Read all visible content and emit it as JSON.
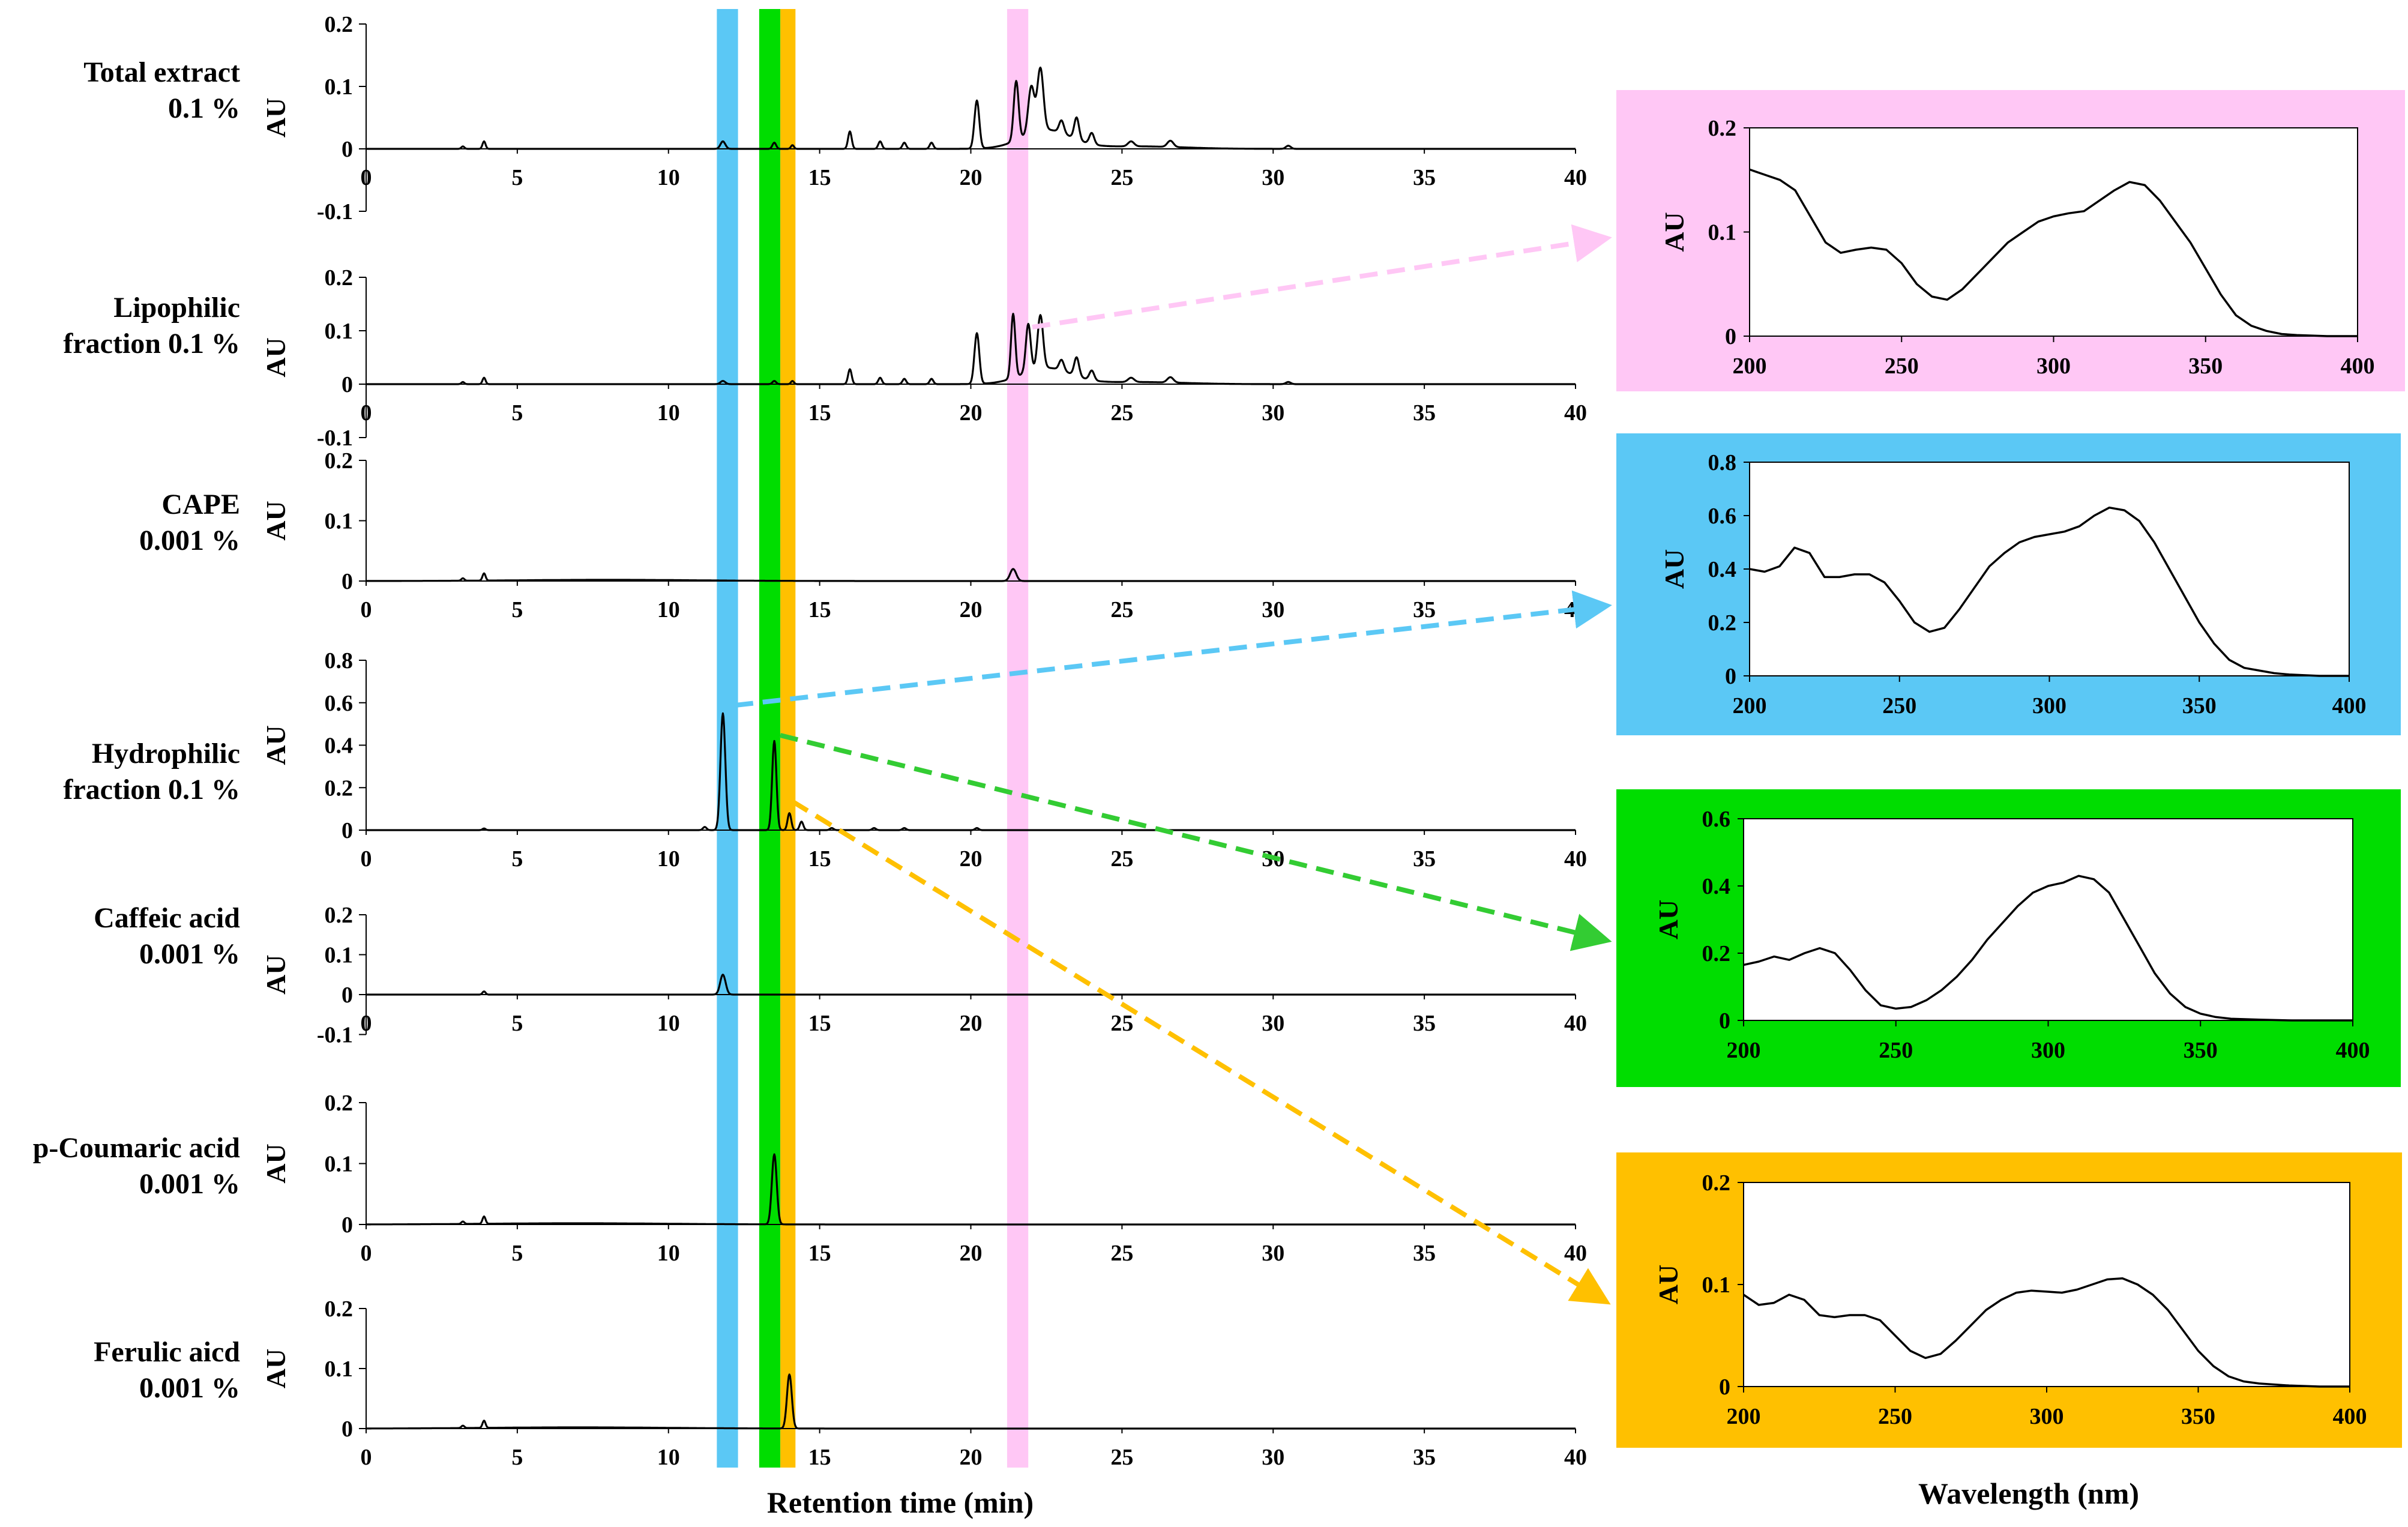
{
  "chart_data": {
    "chromatograms": {
      "type": "line",
      "xlabel": "Retention time (min)",
      "xlim": [
        0,
        40
      ],
      "xticks": [
        "0",
        "5",
        "10",
        "15",
        "20",
        "25",
        "30",
        "35",
        "40"
      ],
      "ylabel": "AU",
      "highlight_bands": [
        {
          "color": "#5bc8f5",
          "x_min": 11.6,
          "x_max": 12.3
        },
        {
          "color": "#00dd00",
          "x_min": 13.0,
          "x_max": 13.7
        },
        {
          "color": "#ffc000",
          "x_min": 13.7,
          "x_max": 14.2
        },
        {
          "color": "#ffc7f5",
          "x_min": 21.2,
          "x_max": 21.9
        }
      ],
      "panels": [
        {
          "name_line1": "Total extract",
          "name_line2": "0.1 %",
          "ylim": [
            -0.1,
            0.2
          ],
          "yticks": [
            "0.2",
            "0.1",
            "0",
            "-0.1"
          ],
          "peaks": [
            [
              3.2,
              0.004,
              0.05
            ],
            [
              3.9,
              0.012,
              0.05
            ],
            [
              11.8,
              0.012,
              0.08
            ],
            [
              13.5,
              0.01,
              0.06
            ],
            [
              14.1,
              0.006,
              0.05
            ],
            [
              16.0,
              0.028,
              0.06
            ],
            [
              17.0,
              0.012,
              0.06
            ],
            [
              17.8,
              0.01,
              0.06
            ],
            [
              18.7,
              0.01,
              0.06
            ],
            [
              20.2,
              0.077,
              0.08
            ],
            [
              21.5,
              0.095,
              0.08
            ],
            [
              22.0,
              0.075,
              0.1
            ],
            [
              22.3,
              0.1,
              0.1
            ],
            [
              23.0,
              0.02,
              0.08
            ],
            [
              23.5,
              0.035,
              0.08
            ],
            [
              24.0,
              0.018,
              0.08
            ],
            [
              25.3,
              0.008,
              0.1
            ],
            [
              26.6,
              0.01,
              0.1
            ],
            [
              30.5,
              0.005,
              0.08
            ]
          ],
          "bumps": [
            [
              22.5,
              0.03,
              0.8
            ],
            [
              25.5,
              0.004,
              1.5
            ]
          ]
        },
        {
          "name_line1": "Lipophilic",
          "name_line2": "fraction  0.1 %",
          "ylim": [
            -0.1,
            0.2
          ],
          "yticks": [
            "0.2",
            "0.1",
            "0",
            "-0.1"
          ],
          "peaks": [
            [
              3.2,
              0.004,
              0.05
            ],
            [
              3.9,
              0.012,
              0.05
            ],
            [
              11.8,
              0.006,
              0.08
            ],
            [
              13.5,
              0.006,
              0.06
            ],
            [
              14.1,
              0.006,
              0.05
            ],
            [
              16.0,
              0.028,
              0.06
            ],
            [
              17.0,
              0.012,
              0.06
            ],
            [
              17.8,
              0.01,
              0.06
            ],
            [
              18.7,
              0.01,
              0.06
            ],
            [
              20.2,
              0.095,
              0.08
            ],
            [
              21.4,
              0.12,
              0.07
            ],
            [
              21.9,
              0.09,
              0.08
            ],
            [
              22.3,
              0.1,
              0.09
            ],
            [
              23.0,
              0.02,
              0.08
            ],
            [
              23.5,
              0.035,
              0.08
            ],
            [
              24.0,
              0.018,
              0.08
            ],
            [
              25.3,
              0.008,
              0.1
            ],
            [
              26.6,
              0.01,
              0.1
            ],
            [
              30.5,
              0.004,
              0.08
            ]
          ],
          "bumps": [
            [
              22.5,
              0.03,
              0.8
            ],
            [
              25.5,
              0.004,
              1.5
            ]
          ]
        },
        {
          "name_line1": "CAPE",
          "name_line2": "0.001 %",
          "ylim": [
            0,
            0.2
          ],
          "yticks": [
            "0.2",
            "0.1",
            "0"
          ],
          "peaks": [
            [
              3.2,
              0.004,
              0.05
            ],
            [
              3.9,
              0.012,
              0.05
            ],
            [
              21.4,
              0.02,
              0.1
            ]
          ],
          "bumps": [
            [
              8,
              0.002,
              3
            ]
          ]
        },
        {
          "name_line1": "Hydrophilic",
          "name_line2": "fraction 0.1 %",
          "ylim": [
            0,
            0.8
          ],
          "yticks": [
            "0.8",
            "0.6",
            "0.4",
            "0.2",
            "0"
          ],
          "peaks": [
            [
              3.9,
              0.008,
              0.05
            ],
            [
              11.2,
              0.015,
              0.06
            ],
            [
              11.8,
              0.55,
              0.08
            ],
            [
              13.5,
              0.42,
              0.07
            ],
            [
              14.0,
              0.08,
              0.06
            ],
            [
              14.4,
              0.04,
              0.06
            ],
            [
              15.4,
              0.01,
              0.06
            ],
            [
              16.8,
              0.01,
              0.06
            ],
            [
              17.8,
              0.01,
              0.06
            ],
            [
              20.2,
              0.01,
              0.06
            ]
          ],
          "bumps": []
        },
        {
          "name_line1": "Caffeic acid",
          "name_line2": "0.001 %",
          "ylim": [
            -0.1,
            0.2
          ],
          "yticks": [
            "0.2",
            "0.1",
            "0",
            "-0.1"
          ],
          "peaks": [
            [
              3.9,
              0.008,
              0.05
            ],
            [
              11.8,
              0.05,
              0.09
            ]
          ],
          "bumps": []
        },
        {
          "name_line1": "p-Coumaric acid",
          "name_line2": "0.001 %",
          "ylim": [
            0,
            0.2
          ],
          "yticks": [
            "0.2",
            "0.1",
            "0"
          ],
          "peaks": [
            [
              3.2,
              0.004,
              0.05
            ],
            [
              3.9,
              0.012,
              0.05
            ],
            [
              13.5,
              0.115,
              0.08
            ]
          ],
          "bumps": [
            [
              7,
              0.002,
              3
            ]
          ]
        },
        {
          "name_line1": "Ferulic aicd",
          "name_line2": "0.001 %",
          "ylim": [
            0,
            0.2
          ],
          "yticks": [
            "0.2",
            "0.1",
            "0"
          ],
          "peaks": [
            [
              3.2,
              0.004,
              0.05
            ],
            [
              3.9,
              0.012,
              0.05
            ],
            [
              14.0,
              0.09,
              0.08
            ]
          ],
          "bumps": [
            [
              7,
              0.002,
              3
            ]
          ]
        }
      ]
    },
    "uv_spectra": {
      "type": "line",
      "xlabel": "Wavelength (nm)",
      "xlim": [
        200,
        400
      ],
      "xticks": [
        "200",
        "250",
        "300",
        "350",
        "400"
      ],
      "ylabel": "AU",
      "panels": [
        {
          "bg": "#ffc7f5",
          "arrow_color": "#ffc7f5",
          "ylim": [
            0,
            0.2
          ],
          "yticks": [
            "0.2",
            "0.1",
            "0"
          ],
          "x": [
            200,
            205,
            210,
            215,
            220,
            225,
            230,
            235,
            240,
            245,
            250,
            255,
            260,
            265,
            270,
            275,
            280,
            285,
            290,
            295,
            300,
            305,
            310,
            315,
            320,
            325,
            330,
            335,
            340,
            345,
            350,
            355,
            360,
            365,
            370,
            375,
            380,
            390,
            400
          ],
          "y": [
            0.16,
            0.155,
            0.15,
            0.14,
            0.115,
            0.09,
            0.08,
            0.083,
            0.085,
            0.083,
            0.07,
            0.05,
            0.038,
            0.035,
            0.045,
            0.06,
            0.075,
            0.09,
            0.1,
            0.11,
            0.115,
            0.118,
            0.12,
            0.13,
            0.14,
            0.148,
            0.145,
            0.13,
            0.11,
            0.09,
            0.065,
            0.04,
            0.02,
            0.01,
            0.005,
            0.002,
            0.001,
            0,
            0
          ]
        },
        {
          "bg": "#5bc8f5",
          "arrow_color": "#5bc8f5",
          "ylim": [
            0,
            0.8
          ],
          "yticks": [
            "0.8",
            "0.6",
            "0.4",
            "0.2",
            "0"
          ],
          "x": [
            200,
            205,
            210,
            215,
            220,
            225,
            230,
            235,
            240,
            245,
            250,
            255,
            260,
            265,
            270,
            275,
            280,
            285,
            290,
            295,
            300,
            305,
            310,
            315,
            320,
            325,
            330,
            335,
            340,
            345,
            350,
            355,
            360,
            365,
            370,
            375,
            380,
            390,
            400
          ],
          "y": [
            0.4,
            0.39,
            0.41,
            0.48,
            0.46,
            0.37,
            0.37,
            0.38,
            0.38,
            0.35,
            0.28,
            0.2,
            0.165,
            0.18,
            0.25,
            0.33,
            0.41,
            0.46,
            0.5,
            0.52,
            0.53,
            0.54,
            0.56,
            0.6,
            0.63,
            0.62,
            0.58,
            0.5,
            0.4,
            0.3,
            0.2,
            0.12,
            0.06,
            0.03,
            0.02,
            0.01,
            0.005,
            0,
            0
          ]
        },
        {
          "bg": "#00dd00",
          "arrow_color": "#33cc33",
          "ylim": [
            0,
            0.6
          ],
          "yticks": [
            "0.6",
            "0.4",
            "0.2",
            "0"
          ],
          "x": [
            200,
            205,
            210,
            215,
            220,
            225,
            230,
            235,
            240,
            245,
            250,
            255,
            260,
            265,
            270,
            275,
            280,
            285,
            290,
            295,
            300,
            305,
            310,
            315,
            320,
            325,
            330,
            335,
            340,
            345,
            350,
            355,
            360,
            370,
            380,
            390,
            400
          ],
          "y": [
            0.165,
            0.175,
            0.19,
            0.18,
            0.2,
            0.215,
            0.2,
            0.15,
            0.09,
            0.045,
            0.035,
            0.04,
            0.06,
            0.09,
            0.13,
            0.18,
            0.24,
            0.29,
            0.34,
            0.38,
            0.4,
            0.41,
            0.43,
            0.42,
            0.38,
            0.3,
            0.22,
            0.14,
            0.08,
            0.04,
            0.02,
            0.01,
            0.005,
            0.002,
            0,
            0,
            0
          ]
        },
        {
          "bg": "#ffc000",
          "arrow_color": "#ffc000",
          "ylim": [
            0,
            0.2
          ],
          "yticks": [
            "0.2",
            "0.1",
            "0"
          ],
          "x": [
            200,
            205,
            210,
            215,
            220,
            225,
            230,
            235,
            240,
            245,
            250,
            255,
            260,
            265,
            270,
            275,
            280,
            285,
            290,
            295,
            300,
            305,
            310,
            315,
            320,
            325,
            330,
            335,
            340,
            345,
            350,
            355,
            360,
            365,
            370,
            375,
            380,
            390,
            400
          ],
          "y": [
            0.09,
            0.08,
            0.082,
            0.09,
            0.085,
            0.07,
            0.068,
            0.07,
            0.07,
            0.065,
            0.05,
            0.035,
            0.028,
            0.032,
            0.045,
            0.06,
            0.075,
            0.085,
            0.092,
            0.094,
            0.093,
            0.092,
            0.095,
            0.1,
            0.105,
            0.106,
            0.1,
            0.09,
            0.075,
            0.055,
            0.035,
            0.02,
            0.01,
            0.005,
            0.003,
            0.002,
            0.001,
            0,
            0
          ]
        }
      ]
    }
  }
}
